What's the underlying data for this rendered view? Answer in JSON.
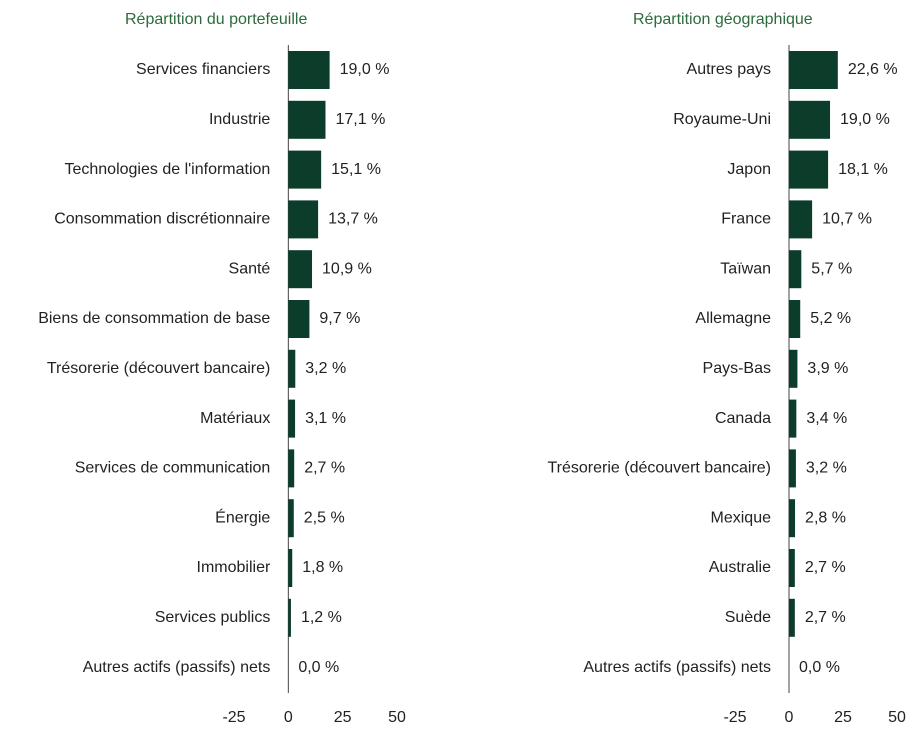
{
  "chart_data": [
    {
      "type": "bar",
      "orientation": "horizontal",
      "title": "Répartition du portefeuille",
      "categories": [
        "Services financiers",
        "Industrie",
        "Technologies de l'information",
        "Consommation discrétionnaire",
        "Santé",
        "Biens de consommation de base",
        "Trésorerie (découvert bancaire)",
        "Matériaux",
        "Services de communication",
        "Énergie",
        "Immobilier",
        "Services publics",
        "Autres actifs (passifs) nets"
      ],
      "values": [
        19.0,
        17.1,
        15.1,
        13.7,
        10.9,
        9.7,
        3.2,
        3.1,
        2.7,
        2.5,
        1.8,
        1.2,
        0.0
      ],
      "value_labels": [
        "19,0 %",
        "17,1 %",
        "15,1 %",
        "13,7 %",
        "10,9 %",
        "9,7 %",
        "3,2 %",
        "3,1 %",
        "2,7 %",
        "2,5 %",
        "1,8 %",
        "1,2 %",
        "0,0 %"
      ],
      "color": "#0c3d2b",
      "xlim": [
        -25,
        50
      ],
      "xticks": [
        -25,
        0,
        25,
        50
      ]
    },
    {
      "type": "bar",
      "orientation": "horizontal",
      "title": "Répartition géographique",
      "categories": [
        "Autres pays",
        "Royaume-Uni",
        "Japon",
        "France",
        "Taïwan",
        "Allemagne",
        "Pays-Bas",
        "Canada",
        "Trésorerie (découvert bancaire)",
        "Mexique",
        "Australie",
        "Suède",
        "Autres actifs (passifs) nets"
      ],
      "values": [
        22.6,
        19.0,
        18.1,
        10.7,
        5.7,
        5.2,
        3.9,
        3.4,
        3.2,
        2.8,
        2.7,
        2.7,
        0.0
      ],
      "value_labels": [
        "22,6 %",
        "19,0 %",
        "18,1 %",
        "10,7 %",
        "5,7 %",
        "5,2 %",
        "3,9 %",
        "3,4 %",
        "3,2 %",
        "2,8 %",
        "2,7 %",
        "2,7 %",
        "0,0 %"
      ],
      "color": "#0c3d2b",
      "xlim": [
        -25,
        50
      ],
      "xticks": [
        -25,
        0,
        25,
        50
      ]
    }
  ]
}
